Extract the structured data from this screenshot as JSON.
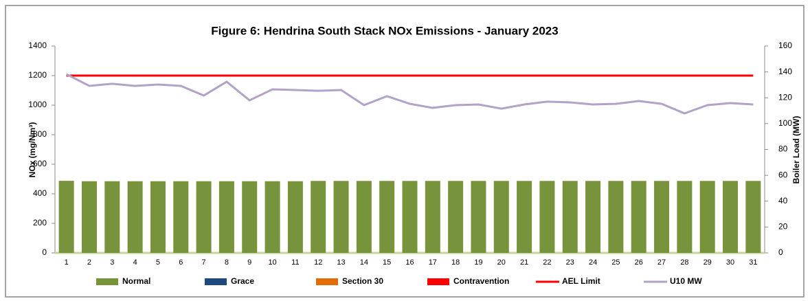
{
  "chart_data": {
    "type": "bar",
    "title": "Figure 6: Hendrina South Stack NOx Emissions -  January 2023",
    "ylabel": "NOx (mg/Nm³)",
    "y2label": "Boiler Load (MW)",
    "categories": [
      1,
      2,
      3,
      4,
      5,
      6,
      7,
      8,
      9,
      10,
      11,
      12,
      13,
      14,
      15,
      16,
      17,
      18,
      19,
      20,
      21,
      22,
      23,
      24,
      25,
      26,
      27,
      28,
      29,
      30,
      31
    ],
    "stacked": true,
    "series": [
      {
        "name": "Normal",
        "color": "#77933c",
        "kind": "bar",
        "values": [
          488,
          485,
          485,
          485,
          485,
          485,
          485,
          485,
          485,
          485,
          485,
          487,
          487,
          487,
          487,
          487,
          487,
          487,
          487,
          487,
          487,
          487,
          487,
          487,
          487,
          487,
          487,
          487,
          487,
          487,
          487
        ]
      },
      {
        "name": "Grace",
        "color": "#1f497d",
        "kind": "bar",
        "values": [
          0,
          0,
          0,
          0,
          0,
          0,
          0,
          0,
          0,
          0,
          0,
          0,
          0,
          0,
          0,
          0,
          0,
          0,
          0,
          0,
          0,
          0,
          0,
          0,
          0,
          0,
          0,
          0,
          0,
          0,
          0
        ]
      },
      {
        "name": "Section 30",
        "color": "#e36c09",
        "kind": "bar",
        "values": [
          0,
          0,
          0,
          0,
          0,
          0,
          0,
          0,
          0,
          0,
          0,
          0,
          0,
          0,
          0,
          0,
          0,
          0,
          0,
          0,
          0,
          0,
          0,
          0,
          0,
          0,
          0,
          0,
          0,
          0,
          0
        ]
      },
      {
        "name": "Contravention",
        "color": "#ff0000",
        "kind": "bar",
        "values": [
          0,
          0,
          0,
          0,
          0,
          0,
          0,
          0,
          0,
          0,
          0,
          0,
          0,
          0,
          0,
          0,
          0,
          0,
          0,
          0,
          0,
          0,
          0,
          0,
          0,
          0,
          0,
          0,
          0,
          0,
          0
        ]
      },
      {
        "name": "AEL Limit",
        "color": "#ff0000",
        "kind": "line",
        "values": [
          1200,
          1200,
          1200,
          1200,
          1200,
          1200,
          1200,
          1200,
          1200,
          1200,
          1200,
          1200,
          1200,
          1200,
          1200,
          1200,
          1200,
          1200,
          1200,
          1200,
          1200,
          1200,
          1200,
          1200,
          1200,
          1200,
          1200,
          1200,
          1200,
          1200,
          1200
        ]
      },
      {
        "name": "U10 MW",
        "color": "#b3a2c7",
        "kind": "line",
        "axis": "y2",
        "values": [
          138.2,
          129.2,
          130.8,
          129.2,
          130.2,
          129.2,
          121.7,
          132.4,
          118.0,
          126.5,
          126.0,
          125.4,
          126.0,
          114.3,
          121.2,
          115.3,
          112.2,
          114.3,
          114.8,
          111.6,
          114.8,
          117.0,
          116.4,
          114.8,
          115.3,
          117.5,
          115.3,
          107.9,
          114.3,
          115.9,
          114.8
        ]
      }
    ],
    "ylim": [
      0,
      1400
    ],
    "yticks": [
      0,
      200,
      400,
      600,
      800,
      1000,
      1200,
      1400
    ],
    "y2lim": [
      0,
      160
    ],
    "y2ticks": [
      0,
      20,
      40,
      60,
      80,
      100,
      120,
      140,
      160
    ],
    "grid": false,
    "legend": "bottom"
  }
}
